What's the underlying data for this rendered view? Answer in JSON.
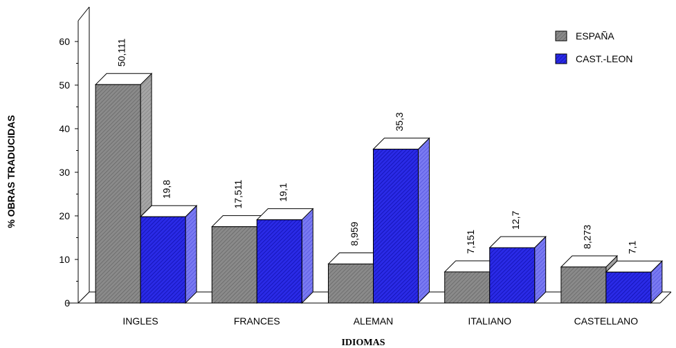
{
  "chart_data": {
    "type": "bar",
    "style": "3d-clustered",
    "categories": [
      "INGLES",
      "FRANCES",
      "ALEMAN",
      "ITALIANO",
      "CASTELLANO"
    ],
    "series": [
      {
        "name": "ESPAÑA",
        "values": [
          50.111,
          17.511,
          8.959,
          7.151,
          8.273
        ],
        "labels": [
          "50,111",
          "17,511",
          "8,959",
          "7,151",
          "8,273"
        ],
        "color": "#808080",
        "side_color": "#9a9a9a",
        "top_color": "#ffffff"
      },
      {
        "name": "CAST.-LEON",
        "values": [
          19.8,
          19.1,
          35.3,
          12.7,
          7.1
        ],
        "labels": [
          "19,8",
          "19,1",
          "35,3",
          "12,7",
          "7,1"
        ],
        "color": "#2222dd",
        "side_color": "#6d6df0",
        "top_color": "#ffffff"
      }
    ],
    "title": "",
    "xlabel": "IDIOMAS",
    "ylabel": "% OBRAS TRADUCIDAS",
    "ylim": [
      0,
      60
    ],
    "yticks": [
      0,
      10,
      20,
      30,
      40,
      50,
      60
    ],
    "grid": false,
    "legend": "top-right"
  }
}
